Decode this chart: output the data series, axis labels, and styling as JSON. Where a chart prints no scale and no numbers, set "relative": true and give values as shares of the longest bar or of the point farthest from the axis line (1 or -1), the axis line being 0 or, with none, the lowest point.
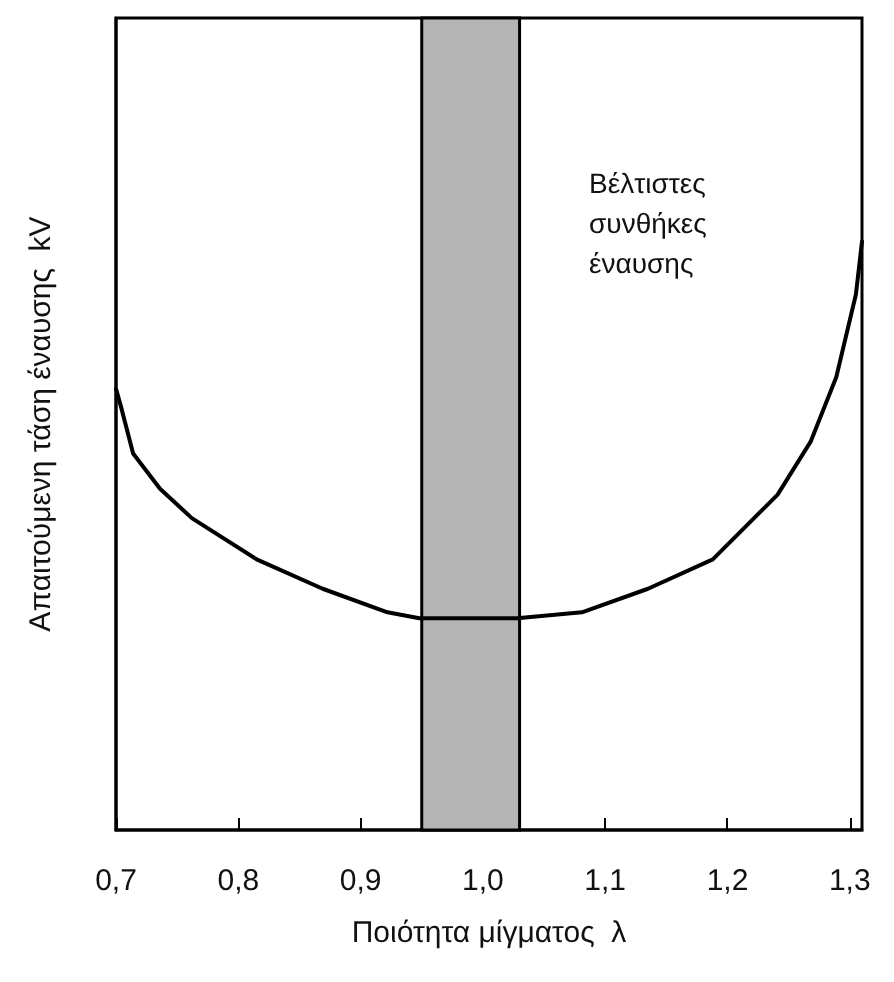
{
  "chart_data": {
    "type": "line",
    "relative": true,
    "xlabel": "Ποιότητα μίγματος  λ",
    "ylabel": "Απαιτούμενη τάση έναυσης  kV",
    "x": [
      0.7,
      0.704,
      0.714,
      0.736,
      0.762,
      0.815,
      0.869,
      0.922,
      0.948,
      1.028,
      1.081,
      1.135,
      1.188,
      1.241,
      1.268,
      1.289,
      1.305,
      1.31
    ],
    "series": [
      {
        "color": "#000000",
        "values": [
          0.75,
          0.72,
          0.64,
          0.58,
          0.53,
          0.46,
          0.41,
          0.37,
          0.36,
          0.36,
          0.37,
          0.41,
          0.46,
          0.57,
          0.66,
          0.77,
          0.91,
          1.0
        ]
      }
    ],
    "xlim": [
      0.7,
      1.31
    ],
    "xticks": [
      {
        "value": 0.7,
        "label": "0,7"
      },
      {
        "value": 0.8,
        "label": "0,8"
      },
      {
        "value": 0.9,
        "label": "0,9"
      },
      {
        "value": 1.0,
        "label": "1,0"
      },
      {
        "value": 1.1,
        "label": "1,1"
      },
      {
        "value": 1.2,
        "label": "1,2"
      },
      {
        "value": 1.3,
        "label": "1,3"
      }
    ],
    "bands": [
      {
        "axis": "x",
        "from": 0.95,
        "to": 1.03,
        "label": "Βέλτιστες\nσυνθήκες\nέναυσης",
        "color": "#b4b4b4"
      }
    ],
    "grid": false,
    "marker": "none",
    "line_style": "solid"
  }
}
